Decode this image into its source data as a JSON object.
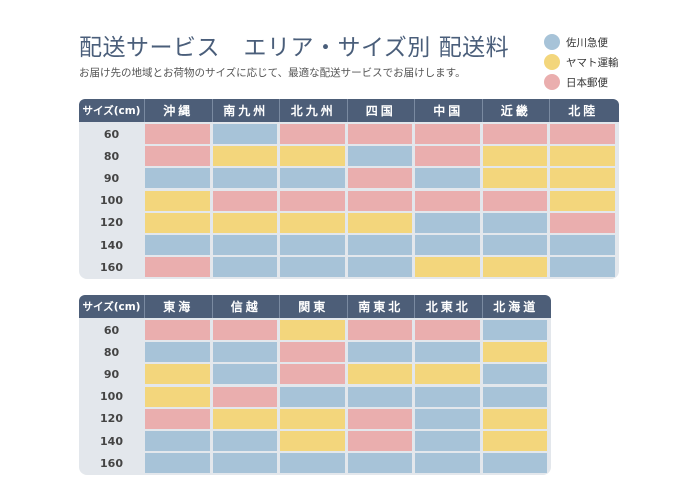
{
  "header": {
    "title": "配送サービス　エリア・サイズ別 配送料",
    "subtitle": "お届け先の地域とお荷物のサイズに応じて、最適な配送サービスでお届けします。"
  },
  "legend": [
    {
      "label": "佐川急便",
      "color": "#a7c3d8"
    },
    {
      "label": "ヤマト運輸",
      "color": "#f3d67c"
    },
    {
      "label": "日本郵便",
      "color": "#eaaeae"
    }
  ],
  "colors": {
    "S": "#a7c3d8",
    "Y": "#f3d67c",
    "J": "#eaaeae"
  },
  "tables": [
    {
      "size_header": "サイズ(cm)",
      "regions": [
        "沖縄",
        "南九州",
        "北九州",
        "四国",
        "中国",
        "近畿",
        "北陸"
      ],
      "sizes": [
        "60",
        "80",
        "90",
        "100",
        "120",
        "140",
        "160"
      ],
      "cells": [
        [
          "J",
          "S",
          "J",
          "J",
          "J",
          "J",
          "J"
        ],
        [
          "J",
          "Y",
          "Y",
          "S",
          "J",
          "Y",
          "Y"
        ],
        [
          "S",
          "S",
          "S",
          "J",
          "S",
          "Y",
          "Y"
        ],
        [
          "Y",
          "J",
          "J",
          "J",
          "J",
          "J",
          "Y"
        ],
        [
          "Y",
          "Y",
          "Y",
          "Y",
          "S",
          "S",
          "J"
        ],
        [
          "S",
          "S",
          "S",
          "S",
          "S",
          "S",
          "S"
        ],
        [
          "J",
          "S",
          "S",
          "S",
          "Y",
          "Y",
          "S"
        ]
      ]
    },
    {
      "size_header": "サイズ(cm)",
      "regions": [
        "東海",
        "信越",
        "関東",
        "南東北",
        "北東北",
        "北海道"
      ],
      "sizes": [
        "60",
        "80",
        "90",
        "100",
        "120",
        "140",
        "160"
      ],
      "cells": [
        [
          "J",
          "J",
          "Y",
          "J",
          "J",
          "S"
        ],
        [
          "S",
          "S",
          "J",
          "S",
          "S",
          "Y"
        ],
        [
          "Y",
          "S",
          "J",
          "Y",
          "Y",
          "S"
        ],
        [
          "Y",
          "J",
          "S",
          "S",
          "S",
          "S"
        ],
        [
          "J",
          "Y",
          "Y",
          "J",
          "S",
          "Y"
        ],
        [
          "S",
          "S",
          "Y",
          "J",
          "S",
          "Y"
        ],
        [
          "S",
          "S",
          "S",
          "S",
          "S",
          "S"
        ]
      ]
    }
  ]
}
